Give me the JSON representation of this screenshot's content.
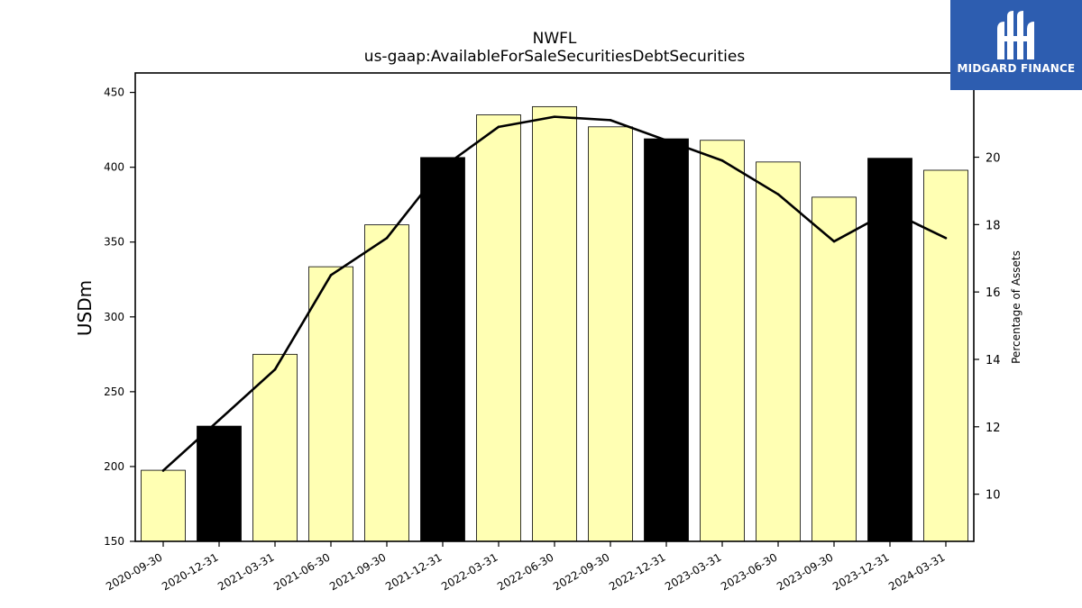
{
  "chart_data": {
    "type": "bar",
    "title": "NWFL",
    "subtitle": "us-gaap:AvailableForSaleSecuritiesDebtSecurities",
    "ylabel": "USDm",
    "y2label": "Percentage of Assets",
    "ylim": [
      150,
      463
    ],
    "y2lim": [
      8.6,
      22.5
    ],
    "yticks": [
      150,
      200,
      250,
      300,
      350,
      400,
      450
    ],
    "y2ticks": [
      10,
      12,
      14,
      16,
      18,
      20
    ],
    "categories": [
      "2020-09-30",
      "2020-12-31",
      "2021-03-31",
      "2021-06-30",
      "2021-09-30",
      "2021-12-31",
      "2022-03-31",
      "2022-06-30",
      "2022-09-30",
      "2022-12-31",
      "2023-03-31",
      "2023-06-30",
      "2023-09-30",
      "2023-12-31",
      "2024-03-31"
    ],
    "series": [
      {
        "axis": "left",
        "kind": "bar",
        "values": [
          197.5,
          227,
          275,
          333.5,
          361.5,
          406.5,
          435,
          440.5,
          427,
          419,
          418,
          403.5,
          380,
          406,
          398
        ],
        "highlight": [
          false,
          true,
          false,
          false,
          false,
          true,
          false,
          false,
          false,
          true,
          false,
          false,
          false,
          true,
          false
        ]
      },
      {
        "axis": "right",
        "kind": "line",
        "values": [
          10.7,
          12.2,
          13.7,
          16.5,
          17.6,
          19.7,
          20.9,
          21.2,
          21.1,
          20.5,
          19.9,
          18.9,
          17.5,
          18.4,
          17.6
        ]
      }
    ],
    "colors": {
      "bar": "#ffffb3",
      "bar_highlight": "#000000",
      "bar_edge": "#000000",
      "line": "#000000"
    },
    "grid": false,
    "legend": "none"
  },
  "logo": {
    "text": "MIDGARD FINANCE",
    "background": "#2d5db0",
    "icon": "midgard-logo-icon"
  }
}
